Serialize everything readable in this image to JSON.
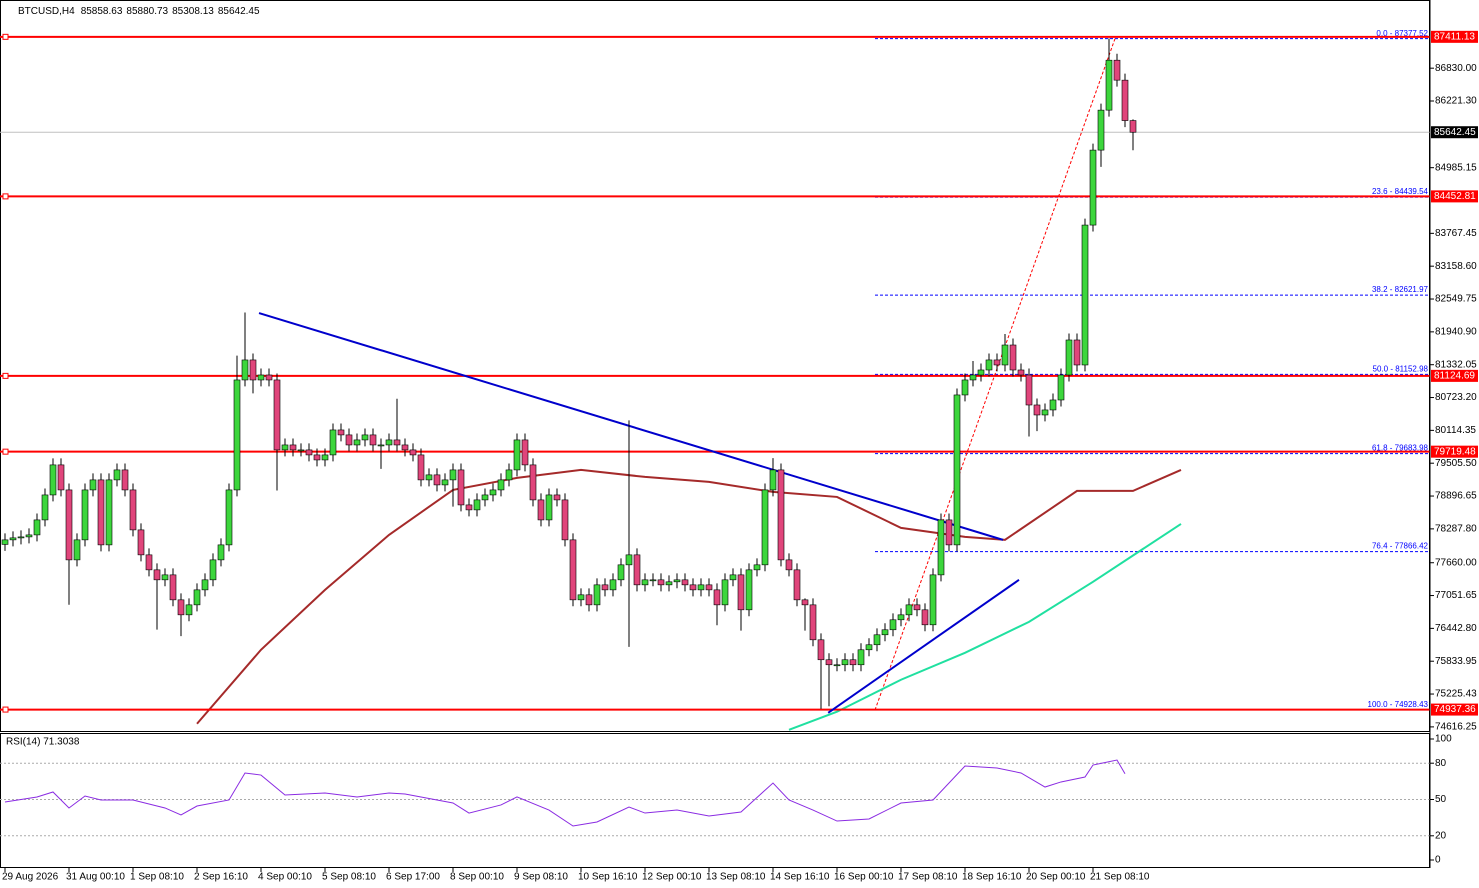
{
  "chart_data": {
    "type": "candlestick",
    "symbol": "BTCUSD,H4",
    "up_color": "#3cd63c",
    "down_color": "#e0457b",
    "categories": [
      "29 Aug 2026",
      null,
      null,
      null,
      null,
      null,
      null,
      null,
      "31 Aug 00:10",
      null,
      null,
      null,
      null,
      null,
      null,
      null,
      "1 Sep 08:10",
      null,
      null,
      null,
      null,
      null,
      null,
      null,
      "2 Sep 16:10",
      null,
      null,
      null,
      null,
      null,
      null,
      null,
      "4 Sep 00:10",
      null,
      null,
      null,
      null,
      null,
      null,
      null,
      "5 Sep 08:10",
      null,
      null,
      null,
      null,
      null,
      null,
      null,
      "6 Sep 17:00",
      null,
      null,
      null,
      null,
      null,
      null,
      null,
      "8 Sep 00:10",
      null,
      null,
      null,
      null,
      null,
      null,
      null,
      "9 Sep 08:10",
      null,
      null,
      null,
      null,
      null,
      null,
      null,
      "10 Sep 16:10",
      null,
      null,
      null,
      null,
      null,
      null,
      null,
      "12 Sep 00:10",
      null,
      null,
      null,
      null,
      null,
      null,
      null,
      "13 Sep 08:10",
      null,
      null,
      null,
      null,
      null,
      null,
      null,
      "14 Sep 16:10",
      null,
      null,
      null,
      null,
      null,
      null,
      null,
      "16 Sep 00:10",
      null,
      null,
      null,
      null,
      null,
      null,
      null,
      "17 Sep 08:10",
      null,
      null,
      null,
      null,
      null,
      null,
      null,
      "18 Sep 16:10",
      null,
      null,
      null,
      null,
      null,
      null,
      null,
      "20 Sep 00:10",
      null,
      null,
      null,
      null,
      null,
      null,
      null,
      "21 Sep 08:10",
      null,
      null,
      null,
      null,
      null
    ],
    "open": [
      78000,
      78084,
      78121,
      78139,
      78176,
      78454,
      78917,
      79474,
      79010,
      77713,
      78084,
      79010,
      79196,
      77991,
      79196,
      79381,
      79010,
      78269,
      77806,
      77528,
      77343,
      77435,
      76972,
      76694,
      76879,
      77157,
      77343,
      77713,
      77991,
      79010,
      81049,
      81420,
      81049,
      81141,
      81049,
      79752,
      79844,
      79752,
      79752,
      79659,
      79566,
      79659,
      80122,
      80030,
      79844,
      79937,
      80030,
      79844,
      79844,
      79937,
      79844,
      79752,
      79659,
      79196,
      79289,
      79103,
      79196,
      79381,
      78732,
      78640,
      78825,
      78917,
      79010,
      79196,
      79381,
      79937,
      79474,
      78825,
      78454,
      78917,
      78825,
      78084,
      76972,
      77065,
      76879,
      77250,
      77157,
      77343,
      77621,
      77806,
      77250,
      77343,
      77343,
      77250,
      77306,
      77343,
      77250,
      77157,
      77250,
      77157,
      76879,
      77343,
      77435,
      76787,
      77528,
      77621,
      79010,
      79381,
      77713,
      77528,
      76972,
      76879,
      76231,
      75861,
      75768,
      75768,
      75861,
      75768,
      76046,
      76139,
      76324,
      76417,
      76602,
      76694,
      76879,
      76787,
      76509,
      77435,
      78454,
      77991,
      80771,
      81049,
      81141,
      81234,
      81420,
      81327,
      81697,
      81234,
      81141,
      80585,
      80400,
      80493,
      80678,
      81141,
      81790,
      81327,
      83921,
      85311,
      86052,
      86978,
      86608,
      85858.63
    ],
    "high": [
      78204,
      78241,
      78259,
      78296,
      78574,
      79037,
      79594,
      79594,
      79130,
      78204,
      79130,
      79316,
      79316,
      79316,
      79501,
      79501,
      79130,
      78389,
      77926,
      77648,
      77555,
      77555,
      77092,
      76999,
      77277,
      77463,
      77833,
      78111,
      79130,
      81500,
      82300,
      81540,
      81261,
      81261,
      81169,
      79964,
      79964,
      79872,
      79872,
      79779,
      79779,
      80242,
      80242,
      80150,
      80057,
      80150,
      80150,
      79964,
      80057,
      80700,
      79964,
      79872,
      79779,
      79409,
      79409,
      79316,
      79501,
      79501,
      78852,
      78945,
      79037,
      79130,
      79316,
      79501,
      80057,
      80057,
      79594,
      78945,
      79037,
      79037,
      78945,
      78204,
      77185,
      77185,
      77370,
      77370,
      77463,
      77741,
      80300,
      77926,
      77463,
      77463,
      77463,
      77426,
      77463,
      77463,
      77370,
      77370,
      77370,
      77277,
      77463,
      77555,
      77555,
      77648,
      77741,
      79130,
      79600,
      79501,
      77833,
      77648,
      76999,
      76999,
      76351,
      75981,
      75888,
      75981,
      75981,
      76166,
      76259,
      76444,
      76537,
      76722,
      76814,
      76999,
      76999,
      76907,
      77555,
      78574,
      78574,
      80891,
      81169,
      81400,
      81354,
      81540,
      81540,
      81900,
      81817,
      81354,
      81261,
      80705,
      80613,
      80798,
      81261,
      81910,
      81910,
      84041,
      85431,
      86172,
      87380,
      87098,
      86728,
      85880.73
    ],
    "low": [
      77880,
      77964,
      78001,
      78019,
      78056,
      78334,
      78797,
      78890,
      76880,
      77593,
      77964,
      78890,
      77871,
      77871,
      79076,
      78890,
      78149,
      77686,
      77408,
      76420,
      77223,
      76852,
      76300,
      76574,
      76759,
      77037,
      77223,
      77593,
      77871,
      78890,
      80929,
      80800,
      80929,
      80929,
      79000,
      79632,
      79632,
      79632,
      79539,
      79446,
      79446,
      79539,
      79910,
      79724,
      79724,
      79817,
      79724,
      79400,
      79724,
      79724,
      79632,
      79539,
      79076,
      79076,
      78983,
      78983,
      78700,
      78612,
      78520,
      78520,
      78705,
      78797,
      78890,
      79076,
      79261,
      79354,
      78705,
      78334,
      78334,
      78705,
      77964,
      76852,
      76852,
      76759,
      76759,
      77037,
      77037,
      77223,
      76100,
      77130,
      77130,
      77223,
      77130,
      77130,
      77186,
      77130,
      77037,
      77037,
      77037,
      76500,
      76759,
      77223,
      76400,
      76667,
      77408,
      77501,
      78890,
      77593,
      77408,
      76852,
      76400,
      76111,
      74950,
      75000,
      75648,
      75648,
      75648,
      75648,
      75926,
      76019,
      76204,
      76297,
      76482,
      76574,
      76667,
      76389,
      76389,
      77315,
      77871,
      77871,
      80651,
      80929,
      81021,
      81114,
      81207,
      81207,
      81114,
      81021,
      80000,
      80100,
      80280,
      80373,
      80558,
      81021,
      81207,
      81207,
      83801,
      85000,
      85932,
      86488,
      85738,
      85308.13
    ],
    "close": [
      78084,
      78121,
      78139,
      78176,
      78454,
      78917,
      79474,
      79010,
      77713,
      78084,
      79010,
      79196,
      77991,
      79196,
      79381,
      79010,
      78269,
      77806,
      77528,
      77343,
      77435,
      76972,
      76694,
      76879,
      77157,
      77343,
      77713,
      77991,
      79010,
      81049,
      81420,
      81049,
      81141,
      81049,
      79752,
      79844,
      79752,
      79752,
      79659,
      79566,
      79659,
      80122,
      80030,
      79844,
      79937,
      80030,
      79844,
      79844,
      79937,
      79844,
      79752,
      79659,
      79196,
      79289,
      79103,
      79196,
      79381,
      78732,
      78640,
      78825,
      78917,
      79010,
      79196,
      79381,
      79937,
      79474,
      78825,
      78454,
      78917,
      78825,
      78084,
      76972,
      77065,
      76879,
      77250,
      77157,
      77343,
      77621,
      77806,
      77250,
      77343,
      77343,
      77250,
      77306,
      77343,
      77250,
      77157,
      77250,
      77157,
      76879,
      77343,
      77435,
      76787,
      77528,
      77621,
      79010,
      79381,
      77713,
      77528,
      76972,
      76879,
      76231,
      75861,
      75768,
      75768,
      75861,
      75768,
      76046,
      76139,
      76324,
      76417,
      76602,
      76694,
      76879,
      76787,
      76509,
      77435,
      78454,
      77991,
      80771,
      81049,
      81141,
      81234,
      81420,
      81327,
      81697,
      81234,
      81141,
      80585,
      80400,
      80493,
      80678,
      81141,
      81790,
      81327,
      83921,
      85311,
      86052,
      86978,
      86608,
      85858.63,
      85642.45
    ],
    "ylim": [
      74540,
      88020
    ],
    "yticks": [
      {
        "value": 86830,
        "label": "86830.00"
      },
      {
        "value": 86221.3,
        "label": "86221.30"
      },
      84985.15,
      83767.45,
      {
        "value": 83158.6,
        "label": "83158.60"
      },
      82549.75,
      {
        "value": 81940.9,
        "label": "81940.90"
      },
      81332.05,
      {
        "value": 80723.2,
        "label": "80723.20"
      },
      80114.35,
      {
        "value": 79505.5,
        "label": "79505.50"
      },
      78896.65,
      {
        "value": 78287.8,
        "label": "78287.80"
      },
      {
        "value": 77660,
        "label": "77660.00"
      },
      77051.65,
      {
        "value": 76442.8,
        "label": "76442.80"
      },
      75833.95,
      75225.43,
      74616.25
    ],
    "levels": [
      87411.13,
      84452.81,
      81124.69,
      79719.48,
      74937.36
    ],
    "level_color": "#ff0000",
    "current_price": 85642.45,
    "fib": [
      {
        "label": "0.0 - 87377.52",
        "value": 87377.52
      },
      {
        "label": "23.6 - 84439.54",
        "value": 84439.54
      },
      {
        "label": "38.2 - 82621.97",
        "value": 82621.97
      },
      {
        "label": "50.0 - 81152.98",
        "value": 81152.98
      },
      {
        "label": "61.8 - 79683.98",
        "value": 79683.98
      },
      {
        "label": "76.4 - 77866.42",
        "value": 77866.42
      },
      {
        "label": "100.0 - 74928.43",
        "value": 74928.43
      }
    ],
    "fib_color": "#0000ff",
    "moving_averages": [
      {
        "color": "#a52a2a",
        "x": [
          24,
          32,
          40,
          48,
          56,
          64,
          72,
          80,
          88,
          96,
          104,
          112,
          120,
          125,
          134,
          141,
          147
        ],
        "values": [
          74674,
          76046,
          77157,
          78176,
          79010,
          79233,
          79381,
          79251,
          79159,
          78973,
          78880,
          78306,
          78139,
          78084,
          78992,
          78992,
          79381
        ]
      },
      {
        "color": "#20e0a0",
        "x": [
          98,
          104,
          112,
          120,
          128,
          136,
          147
        ],
        "values": [
          74563,
          74897,
          75490,
          75990,
          76564,
          77306,
          78380
        ]
      }
    ],
    "trendlines": [
      {
        "color": "#0000cc",
        "x": [
          31.75,
          124.75
        ],
        "values": [
          82290,
          78084
        ]
      },
      {
        "color": "#0000cc",
        "x": [
          102.9,
          126.75
        ],
        "values": [
          74878,
          77343
        ]
      }
    ],
    "rsi": {
      "title": "RSI(14) 71.3038",
      "color": "#8a2be2",
      "ylim": [
        0,
        100
      ],
      "yticks": [
        100,
        80,
        50,
        20,
        0
      ],
      "levels": [
        80,
        50,
        20
      ],
      "x": [
        0,
        4,
        6,
        8,
        10,
        12,
        16,
        20,
        22,
        24,
        28,
        30,
        32,
        35,
        40,
        44,
        48,
        50,
        56,
        58,
        62,
        64,
        68,
        71,
        74,
        78,
        80,
        84,
        88,
        92,
        96,
        98,
        101,
        104,
        108,
        112,
        116,
        120,
        124,
        127,
        130,
        132,
        135,
        136,
        139,
        140
      ],
      "values": [
        47.9,
        52.1,
        56.2,
        43.0,
        52.9,
        49.6,
        49.6,
        43.0,
        37.2,
        44.6,
        49.6,
        71.9,
        70.2,
        53.7,
        55.4,
        52.1,
        55.4,
        54.5,
        47.1,
        38.8,
        45.5,
        52.1,
        41.3,
        28.1,
        31.4,
        43.8,
        38.8,
        41.3,
        36.4,
        39.7,
        63.6,
        49.6,
        41.3,
        32.2,
        33.9,
        47.1,
        49.6,
        77.7,
        76.0,
        71.9,
        60.3,
        64.5,
        68.6,
        78.5,
        82.6,
        71.3
      ]
    }
  }
}
